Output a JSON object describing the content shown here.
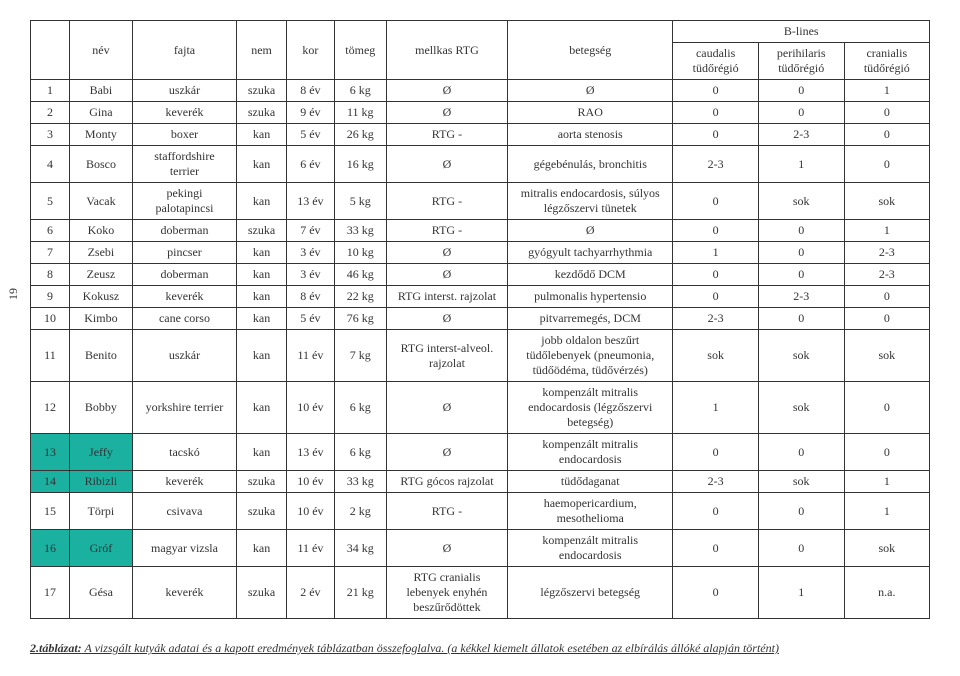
{
  "page_number": "19",
  "headers": {
    "nev": "név",
    "fajta": "fajta",
    "nem": "nem",
    "kor": "kor",
    "tomeg": "tömeg",
    "rtg": "mellkas RTG",
    "bet": "betegség",
    "blines": "B-lines",
    "bl1": "caudalis tüdőrégió",
    "bl2": "perihilaris tüdőrégió",
    "bl3": "cranialis tüdőrégió"
  },
  "rows": [
    {
      "n": "1",
      "nev": "Babi",
      "fajta": "uszkár",
      "nem": "szuka",
      "kor": "8 év",
      "tomeg": "6 kg",
      "rtg": "Ø",
      "bet": "Ø",
      "b1": "0",
      "b2": "0",
      "b3": "1",
      "hl": false
    },
    {
      "n": "2",
      "nev": "Gina",
      "fajta": "keverék",
      "nem": "szuka",
      "kor": "9 év",
      "tomeg": "11 kg",
      "rtg": "Ø",
      "bet": "RAO",
      "b1": "0",
      "b2": "0",
      "b3": "0",
      "hl": false
    },
    {
      "n": "3",
      "nev": "Monty",
      "fajta": "boxer",
      "nem": "kan",
      "kor": "5 év",
      "tomeg": "26 kg",
      "rtg": "RTG -",
      "bet": "aorta stenosis",
      "b1": "0",
      "b2": "2-3",
      "b3": "0",
      "hl": false
    },
    {
      "n": "4",
      "nev": "Bosco",
      "fajta": "staffordshire terrier",
      "nem": "kan",
      "kor": "6 év",
      "tomeg": "16 kg",
      "rtg": "Ø",
      "bet": "gégebénulás, bronchitis",
      "b1": "2-3",
      "b2": "1",
      "b3": "0",
      "hl": false
    },
    {
      "n": "5",
      "nev": "Vacak",
      "fajta": "pekingi palotapincsi",
      "nem": "kan",
      "kor": "13 év",
      "tomeg": "5 kg",
      "rtg": "RTG -",
      "bet": "mitralis endocardosis, súlyos légzőszervi tünetek",
      "b1": "0",
      "b2": "sok",
      "b3": "sok",
      "hl": false
    },
    {
      "n": "6",
      "nev": "Koko",
      "fajta": "doberman",
      "nem": "szuka",
      "kor": "7 év",
      "tomeg": "33 kg",
      "rtg": "RTG -",
      "bet": "Ø",
      "b1": "0",
      "b2": "0",
      "b3": "1",
      "hl": false
    },
    {
      "n": "7",
      "nev": "Zsebi",
      "fajta": "pincser",
      "nem": "kan",
      "kor": "3 év",
      "tomeg": "10 kg",
      "rtg": "Ø",
      "bet": "gyógyult tachyarrhythmia",
      "b1": "1",
      "b2": "0",
      "b3": "2-3",
      "hl": false
    },
    {
      "n": "8",
      "nev": "Zeusz",
      "fajta": "doberman",
      "nem": "kan",
      "kor": "3 év",
      "tomeg": "46 kg",
      "rtg": "Ø",
      "bet": "kezdődő DCM",
      "b1": "0",
      "b2": "0",
      "b3": "2-3",
      "hl": false
    },
    {
      "n": "9",
      "nev": "Kokusz",
      "fajta": "keverék",
      "nem": "kan",
      "kor": "8 év",
      "tomeg": "22 kg",
      "rtg": "RTG interst. rajzolat",
      "bet": "pulmonalis hypertensio",
      "b1": "0",
      "b2": "2-3",
      "b3": "0",
      "hl": false
    },
    {
      "n": "10",
      "nev": "Kimbo",
      "fajta": "cane corso",
      "nem": "kan",
      "kor": "5 év",
      "tomeg": "76 kg",
      "rtg": "Ø",
      "bet": "pitvarremegés, DCM",
      "b1": "2-3",
      "b2": "0",
      "b3": "0",
      "hl": false
    },
    {
      "n": "11",
      "nev": "Benito",
      "fajta": "uszkár",
      "nem": "kan",
      "kor": "11 év",
      "tomeg": "7 kg",
      "rtg": "RTG interst-alveol. rajzolat",
      "bet": "jobb oldalon beszűrt tüdőlebenyek (pneumonia, tüdőödéma, tüdővérzés)",
      "b1": "sok",
      "b2": "sok",
      "b3": "sok",
      "hl": false
    },
    {
      "n": "12",
      "nev": "Bobby",
      "fajta": "yorkshire terrier",
      "nem": "kan",
      "kor": "10 év",
      "tomeg": "6 kg",
      "rtg": "Ø",
      "bet": "kompenzált mitralis endocardosis (légzőszervi betegség)",
      "b1": "1",
      "b2": "sok",
      "b3": "0",
      "hl": false
    },
    {
      "n": "13",
      "nev": "Jeffy",
      "fajta": "tacskó",
      "nem": "kan",
      "kor": "13 év",
      "tomeg": "6 kg",
      "rtg": "Ø",
      "bet": "kompenzált mitralis endocardosis",
      "b1": "0",
      "b2": "0",
      "b3": "0",
      "hl": true
    },
    {
      "n": "14",
      "nev": "Ribizli",
      "fajta": "keverék",
      "nem": "szuka",
      "kor": "10 év",
      "tomeg": "33 kg",
      "rtg": "RTG gócos rajzolat",
      "bet": "tüdődaganat",
      "b1": "2-3",
      "b2": "sok",
      "b3": "1",
      "hl": true
    },
    {
      "n": "15",
      "nev": "Törpi",
      "fajta": "csivava",
      "nem": "szuka",
      "kor": "10 év",
      "tomeg": "2 kg",
      "rtg": "RTG -",
      "bet": "haemopericardium, mesothelioma",
      "b1": "0",
      "b2": "0",
      "b3": "1",
      "hl": false
    },
    {
      "n": "16",
      "nev": "Gróf",
      "fajta": "magyar vizsla",
      "nem": "kan",
      "kor": "11 év",
      "tomeg": "34 kg",
      "rtg": "Ø",
      "bet": "kompenzált mitralis endocardosis",
      "b1": "0",
      "b2": "0",
      "b3": "sok",
      "hl": true
    },
    {
      "n": "17",
      "nev": "Gésa",
      "fajta": "keverék",
      "nem": "szuka",
      "kor": "2 év",
      "tomeg": "21 kg",
      "rtg": "RTG cranialis lebenyek enyhén beszűrődöttek",
      "bet": "légzőszervi betegség",
      "b1": "0",
      "b2": "1",
      "b3": "n.a.",
      "hl": false
    }
  ],
  "footer": {
    "lead": "2.táblázat:",
    "text": " A vizsgált kutyák adatai és a kapott eredmények táblázatban összefoglalva. (a kékkel kiemelt állatok esetében az elbírálás állóké alapján történt)"
  },
  "colors": {
    "highlight": "#1ab1a0",
    "border": "#333333",
    "background": "#ffffff"
  }
}
